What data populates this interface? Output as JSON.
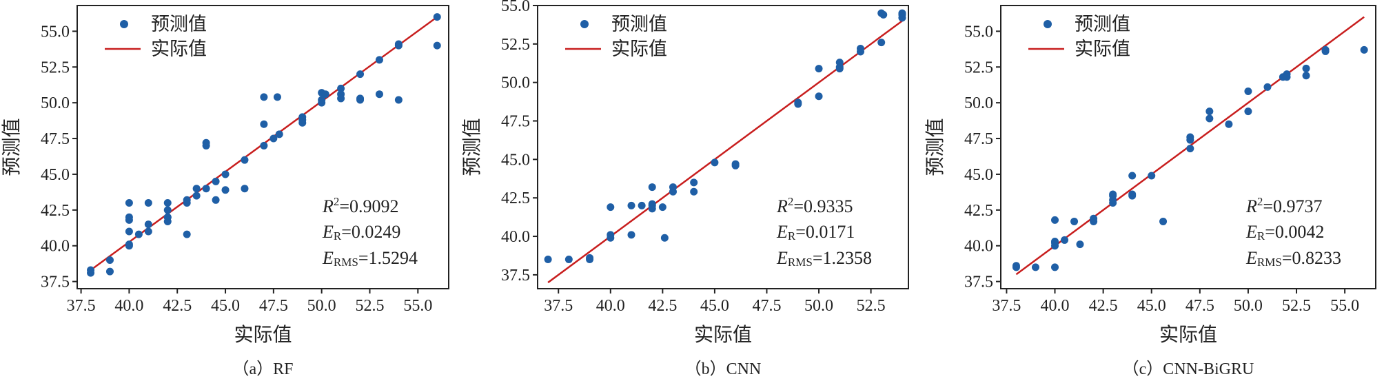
{
  "legend": {
    "predicted": "预测值",
    "actual": "实际值"
  },
  "colors": {
    "point": "#1f5fa6",
    "line": "#c81e1e",
    "axis": "#222222"
  },
  "chart_data": [
    {
      "type": "scatter",
      "caption": "（a）RF",
      "xlabel": "实际值",
      "ylabel": "预测值",
      "xlim": [
        37.3,
        56.6
      ],
      "ylim": [
        37.0,
        56.8
      ],
      "xticks": [
        "37.5",
        "40.0",
        "42.5",
        "45.0",
        "47.5",
        "50.0",
        "52.5",
        "55.0"
      ],
      "yticks": [
        "37.5",
        "40.0",
        "42.5",
        "45.0",
        "47.5",
        "50.0",
        "52.5",
        "55.0"
      ],
      "line": [
        [
          38,
          38.3
        ],
        [
          56,
          56
        ]
      ],
      "stats": {
        "r2": "R2=0.9092",
        "er": "ER=0.0249",
        "erms": "ERMS=1.5294"
      },
      "points": [
        [
          38,
          38.3
        ],
        [
          38,
          38.1
        ],
        [
          39,
          39
        ],
        [
          39,
          38.2
        ],
        [
          40,
          40
        ],
        [
          40,
          40.1
        ],
        [
          40,
          41
        ],
        [
          40,
          41.8
        ],
        [
          40,
          42
        ],
        [
          40,
          43
        ],
        [
          40.5,
          40.8
        ],
        [
          41,
          41
        ],
        [
          41,
          41.5
        ],
        [
          41,
          43
        ],
        [
          42,
          41.7
        ],
        [
          42,
          42
        ],
        [
          42,
          42
        ],
        [
          42,
          42.5
        ],
        [
          42,
          43
        ],
        [
          43,
          43
        ],
        [
          43,
          40.8
        ],
        [
          43,
          43.2
        ],
        [
          43.5,
          43.5
        ],
        [
          43.5,
          44
        ],
        [
          44,
          44
        ],
        [
          44,
          47
        ],
        [
          44,
          47.2
        ],
        [
          44.5,
          43.2
        ],
        [
          44.5,
          44.5
        ],
        [
          45,
          45
        ],
        [
          45,
          43.9
        ],
        [
          46,
          46
        ],
        [
          46,
          44
        ],
        [
          47,
          47
        ],
        [
          47,
          48.5
        ],
        [
          47,
          50.4
        ],
        [
          47.5,
          47.5
        ],
        [
          47.7,
          50.4
        ],
        [
          47.8,
          47.8
        ],
        [
          49,
          49
        ],
        [
          49,
          48.6
        ],
        [
          49,
          48.8
        ],
        [
          50,
          50
        ],
        [
          50,
          50.7
        ],
        [
          50,
          50.2
        ],
        [
          50.2,
          50.6
        ],
        [
          51,
          51
        ],
        [
          51,
          50.6
        ],
        [
          51,
          50.3
        ],
        [
          52,
          52
        ],
        [
          52,
          50.3
        ],
        [
          52,
          50.2
        ],
        [
          53,
          53
        ],
        [
          53,
          50.6
        ],
        [
          54,
          54
        ],
        [
          54,
          54.1
        ],
        [
          54,
          50.2
        ],
        [
          56,
          56
        ],
        [
          56,
          54
        ]
      ]
    },
    {
      "type": "scatter",
      "caption": "（b）CNN",
      "xlabel": "实际值",
      "ylabel": "预测值",
      "xlim": [
        36.5,
        54.3
      ],
      "ylim": [
        36.6,
        55.0
      ],
      "xticks": [
        "37.5",
        "40.0",
        "42.5",
        "45.0",
        "47.5",
        "50.0",
        "52.5"
      ],
      "yticks": [
        "37.5",
        "40.0",
        "42.5",
        "45.0",
        "47.5",
        "50.0",
        "52.5",
        "55.0"
      ],
      "line": [
        [
          37,
          37
        ],
        [
          54,
          54
        ]
      ],
      "stats": {
        "r2": "R2=0.9335",
        "er": "ER=0.0171",
        "erms": "ERMS=1.2358"
      },
      "points": [
        [
          37,
          38.5
        ],
        [
          38,
          38.5
        ],
        [
          39,
          38.5
        ],
        [
          39,
          38.6
        ],
        [
          40,
          39.9
        ],
        [
          40,
          40.1
        ],
        [
          40,
          41.9
        ],
        [
          41,
          40.1
        ],
        [
          41,
          42
        ],
        [
          41.5,
          42
        ],
        [
          42,
          42
        ],
        [
          42,
          42.1
        ],
        [
          42,
          41.8
        ],
        [
          42,
          43.2
        ],
        [
          42.5,
          41.9
        ],
        [
          42.6,
          39.9
        ],
        [
          43,
          42.9
        ],
        [
          43,
          43.2
        ],
        [
          44,
          43.5
        ],
        [
          44,
          42.9
        ],
        [
          45,
          44.8
        ],
        [
          46,
          44.7
        ],
        [
          46,
          44.6
        ],
        [
          49,
          48.7
        ],
        [
          49,
          48.6
        ],
        [
          50,
          50.9
        ],
        [
          50,
          49.1
        ],
        [
          51,
          51
        ],
        [
          51,
          51.3
        ],
        [
          51,
          50.9
        ],
        [
          52,
          52
        ],
        [
          52,
          52.2
        ],
        [
          53,
          52.6
        ],
        [
          53,
          54.5
        ],
        [
          53.1,
          54.4
        ],
        [
          54,
          54.4
        ],
        [
          54,
          54.2
        ],
        [
          54,
          54.5
        ]
      ]
    },
    {
      "type": "scatter",
      "caption": "（c）CNN-BiGRU",
      "xlabel": "实际值",
      "ylabel": "预测值",
      "xlim": [
        37.2,
        56.6
      ],
      "ylim": [
        37.0,
        56.8
      ],
      "xticks": [
        "37.5",
        "40.0",
        "42.5",
        "45.0",
        "47.5",
        "50.0",
        "52.5",
        "55.0"
      ],
      "yticks": [
        "37.5",
        "40.0",
        "42.5",
        "45.0",
        "47.5",
        "50.0",
        "52.5",
        "55.0"
      ],
      "line": [
        [
          38,
          38
        ],
        [
          56,
          56
        ]
      ],
      "stats": {
        "r2": "R2=0.9737",
        "er": "ER=0.0042",
        "erms": "ERMS=0.8233"
      },
      "points": [
        [
          38,
          38.5
        ],
        [
          38,
          38.6
        ],
        [
          39,
          38.5
        ],
        [
          40,
          38.5
        ],
        [
          40,
          40
        ],
        [
          40,
          40.3
        ],
        [
          40,
          40.2
        ],
        [
          40,
          41.8
        ],
        [
          40.5,
          40.4
        ],
        [
          41,
          41.7
        ],
        [
          41.3,
          40.1
        ],
        [
          42,
          41.7
        ],
        [
          42,
          41.9
        ],
        [
          43,
          43
        ],
        [
          43,
          43.5
        ],
        [
          43,
          43.6
        ],
        [
          43,
          43.2
        ],
        [
          44,
          43.5
        ],
        [
          44,
          44.9
        ],
        [
          44,
          43.6
        ],
        [
          45,
          44.9
        ],
        [
          45.6,
          41.7
        ],
        [
          47,
          46.8
        ],
        [
          47,
          47.4
        ],
        [
          47,
          47.6
        ],
        [
          48,
          48.9
        ],
        [
          48,
          49.4
        ],
        [
          49,
          48.5
        ],
        [
          50,
          49.4
        ],
        [
          50,
          50.8
        ],
        [
          51,
          51.1
        ],
        [
          51.8,
          51.8
        ],
        [
          52,
          52
        ],
        [
          52,
          51.8
        ],
        [
          53,
          51.9
        ],
        [
          53,
          52.4
        ],
        [
          54,
          53.6
        ],
        [
          54,
          53.7
        ],
        [
          56,
          53.7
        ]
      ]
    }
  ]
}
